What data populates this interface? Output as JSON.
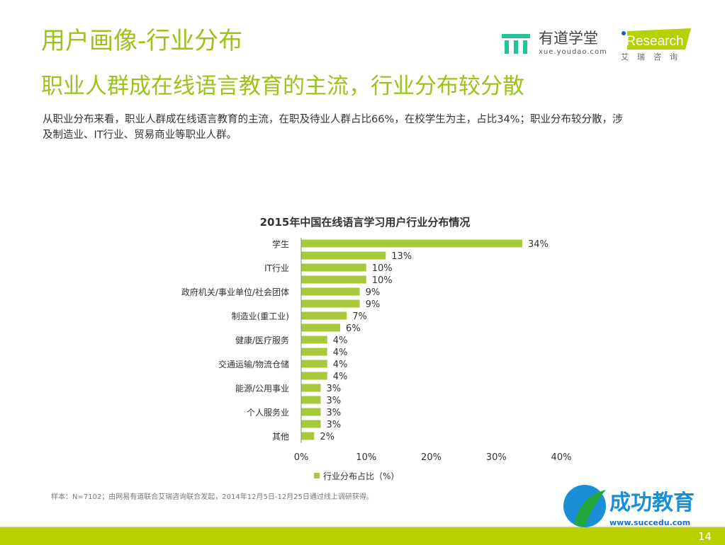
{
  "header": {
    "title": "用户画像-行业分布",
    "subtitle": "职业人群成在线语言教育的主流，行业分布较分散",
    "description": "从职业分布来看，职业人群成在线语言教育的主流，在职及待业人群占比66%，在校学生为主，占比34%；职业分布较分散，涉及制造业、IT行业、贸易商业等职业人群。"
  },
  "logos": {
    "youdao_name": "有道学堂",
    "youdao_url": "xue.youdao.com",
    "iresearch": "iResearch",
    "iresearch_cn": "艾瑞咨询",
    "succedu_name": "成功教育",
    "succedu_url": "www.succedu.com"
  },
  "footer": {
    "note": "样本：N=7102；由网易有道联合艾瑞咨询联合发起，2014年12月5日-12月25日通过线上调研获得。",
    "page": "14"
  },
  "colors": {
    "accent": "#9bc31c",
    "bar": "#a8c93a",
    "band": "#b9d000"
  },
  "chart_data": {
    "type": "bar",
    "orientation": "horizontal",
    "title": "2015年中国在线语言学习用户行业分布情况",
    "categories": [
      "学生",
      "",
      "IT行业",
      "",
      "政府机关/事业单位/社会团体",
      "",
      "制造业(重工业)",
      "",
      "健康/医疗服务",
      "",
      "交通运输/物流仓储",
      "",
      "能源/公用事业",
      "",
      "个人服务业",
      "",
      "其他"
    ],
    "series": [
      {
        "name": "行业分布占比（%）",
        "values": [
          34,
          13,
          10,
          10,
          9,
          9,
          7,
          6,
          4,
          4,
          4,
          4,
          3,
          3,
          3,
          3,
          2
        ]
      }
    ],
    "xlim": [
      0,
      40
    ],
    "xticks": [
      "0%",
      "10%",
      "20%",
      "30%",
      "40%"
    ],
    "grid": false,
    "legend": "bottom"
  }
}
